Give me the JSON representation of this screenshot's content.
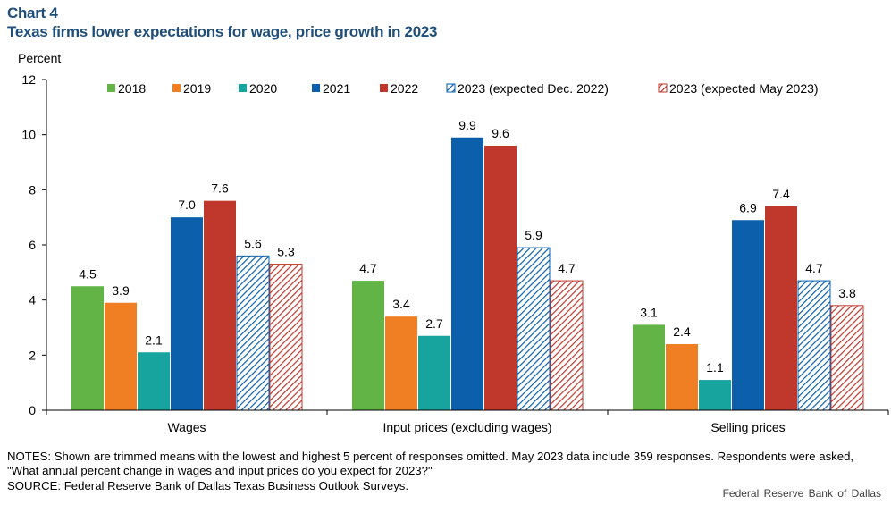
{
  "header": {
    "label": "Chart 4",
    "title": "Texas firms lower expectations for wage, price growth in 2023"
  },
  "chart_data": {
    "type": "bar",
    "ylabel": "Percent",
    "ylim": [
      0,
      12
    ],
    "yticks": [
      0,
      2,
      4,
      6,
      8,
      10,
      12
    ],
    "grid": false,
    "legend_position": "top",
    "categories": [
      "Wages",
      "Input prices (excluding wages)",
      "Selling prices"
    ],
    "series": [
      {
        "name": "2018",
        "values": [
          4.5,
          4.7,
          3.1
        ],
        "labels": [
          "4.5",
          "4.7",
          "3.1"
        ],
        "color": "#62b446",
        "pattern": "solid"
      },
      {
        "name": "2019",
        "values": [
          3.9,
          3.4,
          2.4
        ],
        "labels": [
          "3.9",
          "3.4",
          "2.4"
        ],
        "color": "#f07f23",
        "pattern": "solid"
      },
      {
        "name": "2020",
        "values": [
          2.1,
          2.7,
          1.1
        ],
        "labels": [
          "2.1",
          "2.7",
          "1.1"
        ],
        "color": "#17a39e",
        "pattern": "solid"
      },
      {
        "name": "2021",
        "values": [
          7.0,
          9.9,
          6.9
        ],
        "labels": [
          "7.0",
          "9.9",
          "6.9"
        ],
        "color": "#0b5fab",
        "pattern": "solid"
      },
      {
        "name": "2022",
        "values": [
          7.6,
          9.6,
          7.4
        ],
        "labels": [
          "7.6",
          "9.6",
          "7.4"
        ],
        "color": "#c0372c",
        "pattern": "solid"
      },
      {
        "name": "2023 (expected Dec. 2022)",
        "values": [
          5.6,
          5.9,
          4.7
        ],
        "labels": [
          "5.6",
          "5.9",
          "4.7"
        ],
        "color": "#0b5fab",
        "pattern": "hatch"
      },
      {
        "name": "2023 (expected May 2023)",
        "values": [
          5.3,
          4.7,
          3.8
        ],
        "labels": [
          "5.3",
          "4.7",
          "3.8"
        ],
        "color": "#c0372c",
        "pattern": "hatch"
      }
    ]
  },
  "footer": {
    "notes": "NOTES: Shown are trimmed means with the lowest and highest 5 percent of responses omitted. May 2023 data include 359 responses. Respondents were asked, \"What annual percent change in wages and input prices do you expect for 2023?\"",
    "source": "SOURCE: Federal Reserve Bank of Dallas Texas Business Outlook Surveys.",
    "credit": "Federal Reserve Bank of Dallas"
  }
}
